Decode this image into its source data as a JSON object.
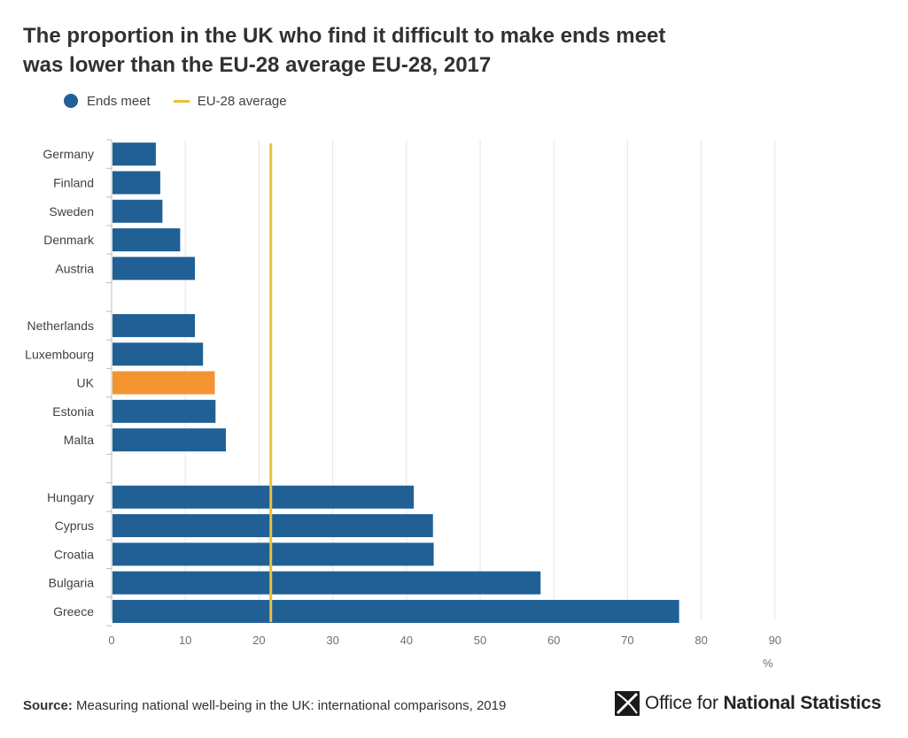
{
  "title_lines": [
    "The proportion in the UK who find it difficult to make ends meet",
    "was lower than the EU-28 average EU-28, 2017"
  ],
  "legend": {
    "series_label": "Ends meet",
    "reference_label": "EU-28 average"
  },
  "colors": {
    "bar": "#206095",
    "highlight": "#f39431",
    "reference": "#e8c13b",
    "grid": "#e6e6e6",
    "axis_text": "#707070"
  },
  "source": {
    "label": "Source:",
    "text": "Measuring national well-being in the UK: international comparisons, 2019"
  },
  "logo": {
    "prefix": "Office for",
    "bold": "National Statistics"
  },
  "chart_data": {
    "type": "bar",
    "orientation": "horizontal",
    "groups": [
      [
        {
          "label": "Germany",
          "value": 6.0
        },
        {
          "label": "Finland",
          "value": 6.6
        },
        {
          "label": "Sweden",
          "value": 6.9
        },
        {
          "label": "Denmark",
          "value": 9.3
        },
        {
          "label": "Austria",
          "value": 11.3
        }
      ],
      [
        {
          "label": "Netherlands",
          "value": 11.3
        },
        {
          "label": "Luxembourg",
          "value": 12.4
        },
        {
          "label": "UK",
          "value": 14.0,
          "highlight": true
        },
        {
          "label": "Estonia",
          "value": 14.1
        },
        {
          "label": "Malta",
          "value": 15.5
        }
      ],
      [
        {
          "label": "Hungary",
          "value": 41.0
        },
        {
          "label": "Cyprus",
          "value": 43.6
        },
        {
          "label": "Croatia",
          "value": 43.7
        },
        {
          "label": "Bulgaria",
          "value": 58.2
        },
        {
          "label": "Greece",
          "value": 77.0
        }
      ]
    ],
    "reference_value": 21.6,
    "xlim": [
      0,
      90
    ],
    "xticks": [
      0,
      10,
      20,
      30,
      40,
      50,
      60,
      70,
      80,
      90
    ],
    "xunit": "%",
    "grid": true,
    "legend_position": "top-left"
  }
}
